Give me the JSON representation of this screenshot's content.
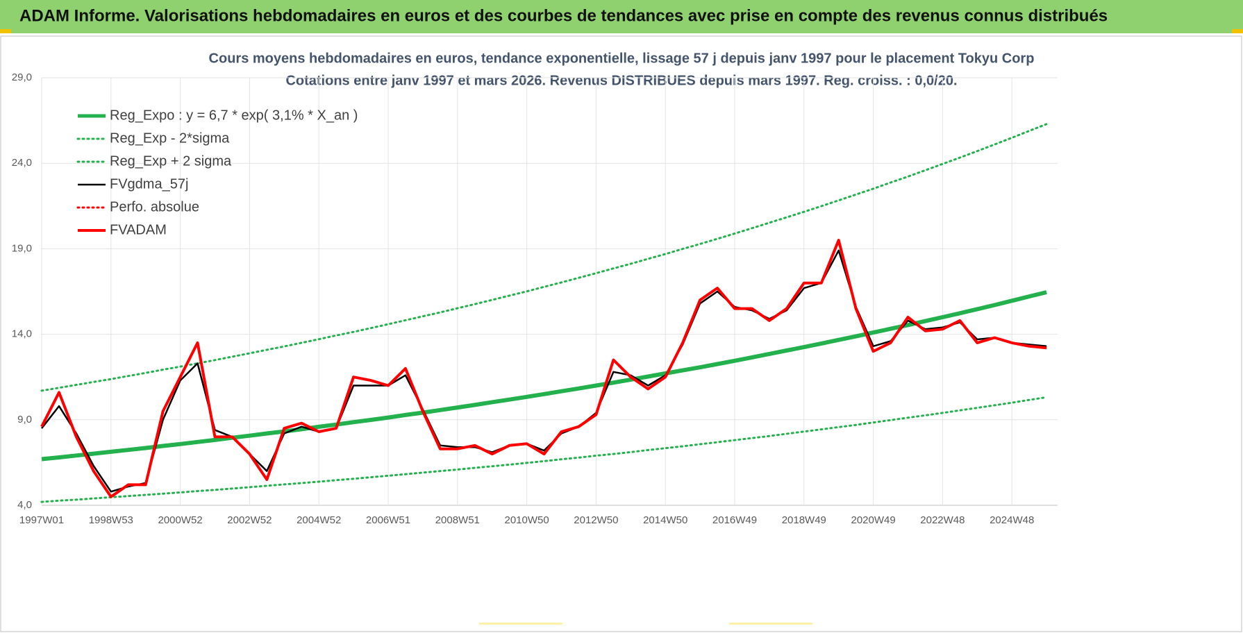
{
  "header": {
    "title": "ADAM Informe. Valorisations hebdomadaires en euros et des courbes de tendances avec prise en compte des revenus connus distribués"
  },
  "chart_data": {
    "type": "line",
    "title": "Cours moyens hebdomadaires en euros, tendance exponentielle, lissage 57 j depuis janv 1997  pour le placement Tokyu Corp",
    "subtitle": "Cotations entre janv 1997 et mars 2026. Revenus DISTRIBUES depuis mars 1997. Reg. croiss. : 0,0/20.",
    "categories": [
      "1997W01",
      null,
      null,
      null,
      "1998W53",
      null,
      null,
      null,
      "2000W52",
      null,
      null,
      null,
      "2002W52",
      null,
      null,
      null,
      "2004W52",
      null,
      null,
      null,
      "2006W51",
      null,
      null,
      null,
      "2008W51",
      null,
      null,
      null,
      "2010W50",
      null,
      null,
      null,
      "2012W50",
      null,
      null,
      null,
      "2014W50",
      null,
      null,
      null,
      "2016W49",
      null,
      null,
      null,
      "2018W49",
      null,
      null,
      null,
      "2020W49",
      null,
      null,
      null,
      "2022W48",
      null,
      null,
      null,
      "2024W48",
      null,
      null
    ],
    "ylim": [
      4,
      29
    ],
    "yticks": [
      {
        "value": 4,
        "label": "4,0"
      },
      {
        "value": 9,
        "label": "9,0"
      },
      {
        "value": 14,
        "label": "14,0"
      },
      {
        "value": 19,
        "label": "19,0"
      },
      {
        "value": 24,
        "label": "24,0"
      },
      {
        "value": 29,
        "label": "29,0"
      }
    ],
    "grid": true,
    "legend": "upper left",
    "series": [
      {
        "name": "Reg_Expo : y = 6,7 * exp( 3,1% *  X_an )",
        "color": "#22b14c",
        "line_style": "bold",
        "values": [
          6.7,
          6.8,
          6.91,
          7.02,
          7.13,
          7.24,
          7.35,
          7.47,
          7.58,
          7.7,
          7.82,
          7.95,
          8.07,
          8.2,
          8.32,
          8.45,
          8.59,
          8.72,
          8.86,
          8.99,
          9.13,
          9.28,
          9.42,
          9.57,
          9.72,
          9.87,
          10.03,
          10.18,
          10.34,
          10.5,
          10.67,
          10.83,
          11.0,
          11.17,
          11.35,
          11.53,
          11.71,
          11.89,
          12.07,
          12.26,
          12.45,
          12.65,
          12.85,
          13.05,
          13.25,
          13.46,
          13.67,
          13.88,
          14.1,
          14.32,
          14.54,
          14.77,
          15.0,
          15.23,
          15.47,
          15.71,
          15.96,
          16.21,
          16.46
        ]
      },
      {
        "name": "Reg_Exp - 2*sigma",
        "color": "#22b14c",
        "line_style": "dotted",
        "values": [
          4.2,
          4.27,
          4.33,
          4.4,
          4.47,
          4.54,
          4.61,
          4.68,
          4.75,
          4.83,
          4.9,
          4.98,
          5.06,
          5.14,
          5.22,
          5.3,
          5.38,
          5.47,
          5.55,
          5.64,
          5.73,
          5.82,
          5.91,
          6.0,
          6.09,
          6.19,
          6.28,
          6.38,
          6.48,
          6.58,
          6.69,
          6.79,
          6.9,
          7.0,
          7.11,
          7.23,
          7.34,
          7.45,
          7.57,
          7.69,
          7.81,
          7.93,
          8.05,
          8.18,
          8.31,
          8.44,
          8.57,
          8.7,
          8.84,
          8.98,
          9.12,
          9.26,
          9.4,
          9.55,
          9.7,
          9.85,
          10.0,
          10.16,
          10.32
        ]
      },
      {
        "name": "Reg_Exp + 2 sigma",
        "color": "#22b14c",
        "line_style": "dotted",
        "values": [
          10.7,
          10.87,
          11.04,
          11.21,
          11.38,
          11.56,
          11.74,
          11.93,
          12.11,
          12.3,
          12.49,
          12.69,
          12.89,
          13.09,
          13.29,
          13.5,
          13.71,
          13.93,
          14.14,
          14.36,
          14.59,
          14.82,
          15.05,
          15.28,
          15.52,
          15.76,
          16.01,
          16.26,
          16.51,
          16.77,
          17.03,
          17.3,
          17.57,
          17.85,
          18.12,
          18.41,
          18.69,
          18.99,
          19.28,
          19.58,
          19.89,
          20.2,
          20.52,
          20.84,
          21.16,
          21.49,
          21.83,
          22.17,
          22.51,
          22.87,
          23.22,
          23.59,
          23.96,
          24.33,
          24.71,
          25.1,
          25.49,
          25.89,
          26.29
        ]
      },
      {
        "name": "FVgdma_57j",
        "color": "#000000",
        "line_style": "solid",
        "values": [
          8.5,
          9.8,
          8.2,
          6.3,
          4.8,
          5.1,
          5.3,
          9.0,
          11.3,
          12.3,
          8.4,
          8.0,
          7.0,
          6.0,
          8.2,
          8.6,
          8.3,
          8.5,
          11.0,
          11.0,
          11.0,
          11.6,
          9.6,
          7.5,
          7.4,
          7.4,
          7.1,
          7.5,
          7.6,
          7.2,
          8.2,
          8.6,
          9.4,
          11.8,
          11.6,
          11.0,
          11.6,
          13.4,
          15.8,
          16.5,
          15.6,
          15.4,
          14.9,
          15.4,
          16.7,
          17.0,
          18.9,
          15.6,
          13.3,
          13.6,
          14.8,
          14.3,
          14.4,
          14.7,
          13.7,
          13.8,
          13.5,
          13.4,
          13.3
        ]
      },
      {
        "name": "Perfo. absolue",
        "color": "#ff0000",
        "line_style": "dotted",
        "values": [
          null,
          null,
          null,
          null,
          null,
          null,
          null,
          null,
          null,
          null,
          null,
          null,
          null,
          null,
          null,
          null,
          null,
          null,
          null,
          null,
          null,
          null,
          null,
          null,
          null,
          null,
          null,
          null,
          null,
          null,
          null,
          null,
          null,
          null,
          null,
          null,
          null,
          null,
          null,
          null,
          null,
          null,
          null,
          null,
          null,
          null,
          null,
          null,
          null,
          null,
          null,
          null,
          null,
          null,
          null,
          null,
          null,
          null,
          null
        ]
      },
      {
        "name": "FVADAM",
        "color": "#ff0000",
        "line_style": "solid",
        "values": [
          8.6,
          10.6,
          8.0,
          6.0,
          4.5,
          5.2,
          5.2,
          9.5,
          11.5,
          13.5,
          8.0,
          8.0,
          7.0,
          5.5,
          8.5,
          8.8,
          8.3,
          8.5,
          11.5,
          11.3,
          11.0,
          12.0,
          9.5,
          7.3,
          7.3,
          7.5,
          7.0,
          7.5,
          7.6,
          7.0,
          8.3,
          8.6,
          9.3,
          12.5,
          11.5,
          10.8,
          11.5,
          13.5,
          16.0,
          16.7,
          15.5,
          15.5,
          14.8,
          15.5,
          17.0,
          17.0,
          19.5,
          15.5,
          13.0,
          13.5,
          15.0,
          14.2,
          14.3,
          14.8,
          13.5,
          13.8,
          13.5,
          13.3,
          13.2
        ]
      }
    ]
  }
}
